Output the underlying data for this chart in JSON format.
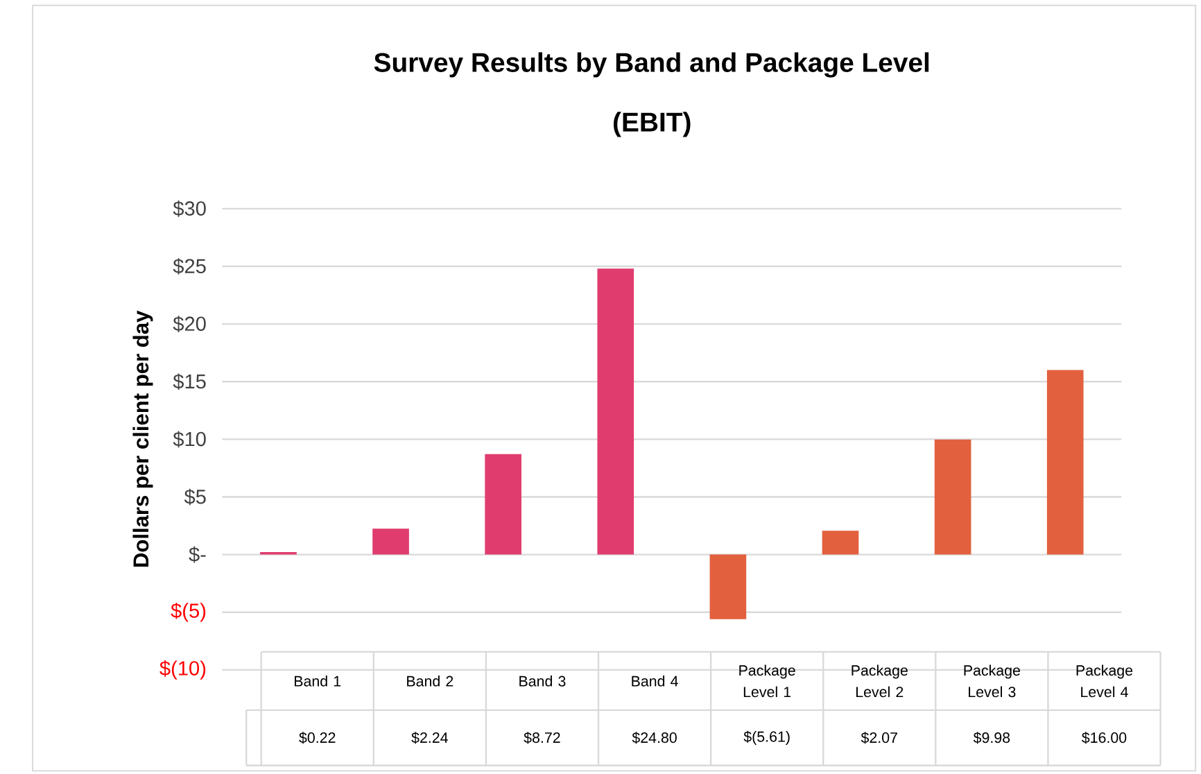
{
  "chart_data": {
    "type": "bar",
    "title": "Survey Results by Band and Package Level",
    "subtitle": "(EBIT)",
    "ylabel": "Dollars per client per day",
    "categories": [
      "Band 1",
      "Band 2",
      "Band 3",
      "Band 4",
      "Package Level 1",
      "Package Level 2",
      "Package Level 3",
      "Package Level 4"
    ],
    "values": [
      0.22,
      2.24,
      8.72,
      24.8,
      -5.61,
      2.07,
      9.98,
      16.0
    ],
    "value_labels": [
      "$0.22",
      "$2.24",
      "$8.72",
      "$24.80",
      "$(5.61)",
      "$2.07",
      "$9.98",
      "$16.00"
    ],
    "colors": [
      "#e03c6e",
      "#e03c6e",
      "#e03c6e",
      "#e03c6e",
      "#e3603e",
      "#e3603e",
      "#e3603e",
      "#e3603e"
    ],
    "ylim": [
      -10,
      30
    ],
    "yticks": [
      {
        "value": -10,
        "label": "$(10)"
      },
      {
        "value": -5,
        "label": "$(5)"
      },
      {
        "value": 0,
        "label": "$-"
      },
      {
        "value": 5,
        "label": "$5"
      },
      {
        "value": 10,
        "label": "$10"
      },
      {
        "value": 15,
        "label": "$15"
      },
      {
        "value": 20,
        "label": "$20"
      },
      {
        "value": 25,
        "label": "$25"
      },
      {
        "value": 30,
        "label": "$30"
      }
    ],
    "grid": "y"
  }
}
